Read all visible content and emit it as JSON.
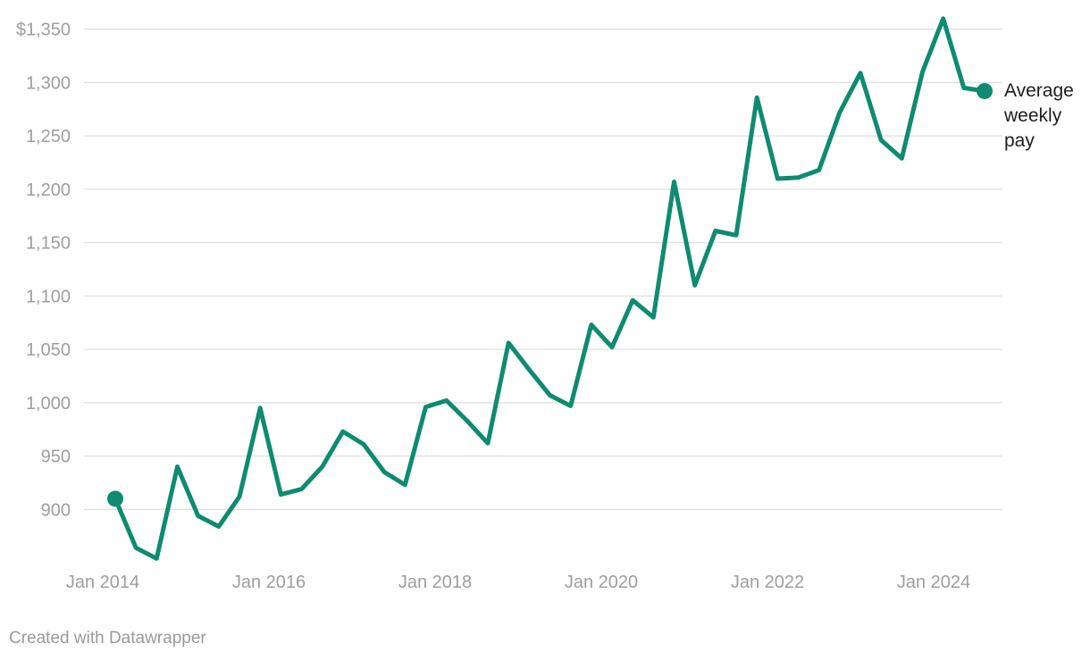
{
  "chart_data": {
    "type": "line",
    "title": "",
    "xlabel": "",
    "ylabel": "",
    "currency_prefix": "$",
    "ylim": [
      900,
      1350
    ],
    "y_tick_step": 50,
    "y_tick_labels": [
      "$1,350",
      "1,300",
      "1,250",
      "1,200",
      "1,150",
      "1,100",
      "1,050",
      "1,000",
      "950",
      "900"
    ],
    "x_tick_labels": [
      "Jan 2014",
      "Jan 2016",
      "Jan 2018",
      "Jan 2020",
      "Jan 2022",
      "Jan 2024"
    ],
    "grid": "horizontal",
    "legend_position": "right-of-last-point",
    "point_markers": "first-and-last",
    "series": [
      {
        "name": "Average weekly pay",
        "x": [
          "2014 Q1",
          "2014 Q2",
          "2014 Q3",
          "2014 Q4",
          "2015 Q1",
          "2015 Q2",
          "2015 Q3",
          "2015 Q4",
          "2016 Q1",
          "2016 Q2",
          "2016 Q3",
          "2016 Q4",
          "2017 Q1",
          "2017 Q2",
          "2017 Q3",
          "2017 Q4",
          "2018 Q1",
          "2018 Q2",
          "2018 Q3",
          "2018 Q4",
          "2019 Q1",
          "2019 Q2",
          "2019 Q3",
          "2019 Q4",
          "2020 Q1",
          "2020 Q2",
          "2020 Q3",
          "2020 Q4",
          "2021 Q1",
          "2021 Q2",
          "2021 Q3",
          "2021 Q4",
          "2022 Q1",
          "2022 Q2",
          "2022 Q3",
          "2022 Q4",
          "2023 Q1",
          "2023 Q2",
          "2023 Q3",
          "2023 Q4",
          "2024 Q1",
          "2024 Q2",
          "2024 Q3"
        ],
        "values": [
          910,
          864,
          854,
          940,
          894,
          884,
          912,
          995,
          914,
          919,
          940,
          973,
          961,
          935,
          923,
          996,
          1002,
          983,
          962,
          1056,
          1031,
          1007,
          997,
          1073,
          1052,
          1096,
          1080,
          1207,
          1110,
          1161,
          1157,
          1286,
          1210,
          1211,
          1218,
          1272,
          1309,
          1246,
          1229,
          1310,
          1360,
          1295,
          1292
        ]
      }
    ]
  },
  "legend": {
    "label": "Average weekly pay"
  },
  "footer": {
    "credit": "Created with Datawrapper"
  },
  "colors": {
    "line": "#0e8b70",
    "marker": "#0e8b70",
    "grid": "#e0e0e0",
    "axis_text": "#9e9e9e",
    "legend_text": "#1d1d1d",
    "credit_text": "#9a9a9a",
    "background": "#ffffff"
  }
}
